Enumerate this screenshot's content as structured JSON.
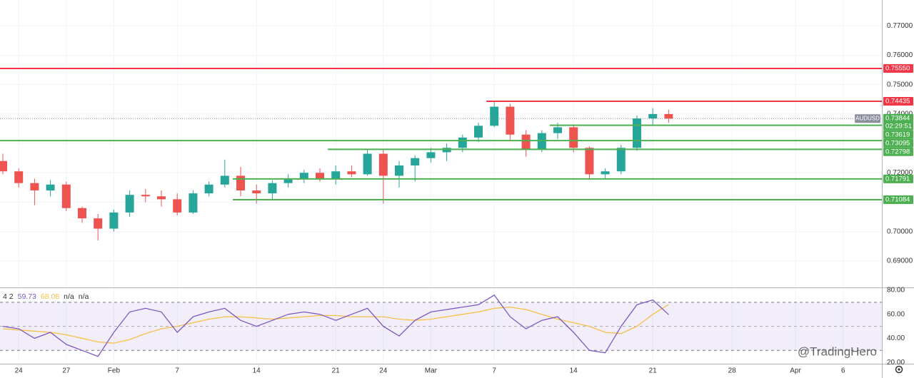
{
  "chart_data": [
    {
      "type": "candlestick",
      "categories": [
        null,
        "24",
        null,
        null,
        "27",
        null,
        null,
        "Feb",
        null,
        null,
        null,
        "7",
        null,
        null,
        null,
        null,
        "14",
        null,
        null,
        null,
        null,
        "21",
        null,
        null,
        "24",
        null,
        null,
        "Mar",
        null,
        null,
        null,
        "7",
        null,
        null,
        null,
        null,
        "14",
        null,
        null,
        null,
        null,
        "21",
        null,
        null,
        null,
        null,
        "28",
        null,
        null,
        null,
        "Apr",
        null,
        null,
        "6",
        null,
        null
      ],
      "open": [
        0.724,
        0.7205,
        0.7165,
        0.714,
        0.716,
        0.708,
        0.7045,
        0.701,
        0.7065,
        0.7125,
        0.712,
        0.711,
        0.7065,
        0.713,
        0.716,
        0.719,
        0.714,
        0.713,
        0.7165,
        0.718,
        0.72,
        0.718,
        0.7205,
        0.7195,
        0.7265,
        0.719,
        0.7225,
        0.725,
        0.727,
        0.7285,
        0.732,
        0.736,
        0.7425,
        0.733,
        0.728,
        0.7335,
        0.7355,
        0.7285,
        0.7195,
        0.7205,
        0.7285,
        0.7385,
        0.74,
        null,
        null,
        null,
        null,
        null,
        null,
        null,
        null,
        null,
        null,
        null,
        null,
        null
      ],
      "high": [
        0.7265,
        0.7215,
        0.718,
        0.7175,
        0.717,
        0.7085,
        0.706,
        0.7075,
        0.714,
        0.7145,
        0.714,
        0.713,
        0.714,
        0.717,
        0.7245,
        0.722,
        0.716,
        0.7175,
        0.7195,
        0.721,
        0.7215,
        0.7225,
        0.7225,
        0.728,
        0.728,
        0.724,
        0.726,
        0.7285,
        0.73,
        0.733,
        0.737,
        0.7441,
        0.7435,
        0.7345,
        0.7345,
        0.737,
        0.7365,
        0.729,
        0.7215,
        0.7295,
        0.7395,
        0.742,
        0.7415,
        null,
        null,
        null,
        null,
        null,
        null,
        null,
        null,
        null,
        null,
        null,
        null,
        null
      ],
      "low": [
        0.7195,
        0.715,
        0.709,
        0.712,
        0.707,
        0.703,
        0.697,
        0.7,
        0.705,
        0.71,
        0.7085,
        0.7055,
        0.706,
        0.712,
        0.715,
        0.712,
        0.7095,
        0.711,
        0.715,
        0.7165,
        0.717,
        0.716,
        0.7185,
        0.719,
        0.7095,
        0.715,
        0.717,
        0.7235,
        0.724,
        0.727,
        0.7305,
        0.7355,
        0.731,
        0.7255,
        0.727,
        0.7315,
        0.727,
        0.718,
        0.7178,
        0.7195,
        0.7275,
        0.736,
        0.737,
        null,
        null,
        null,
        null,
        null,
        null,
        null,
        null,
        null,
        null,
        null,
        null,
        null
      ],
      "close": [
        0.7205,
        0.7165,
        0.714,
        0.716,
        0.708,
        0.7045,
        0.701,
        0.7065,
        0.7125,
        0.712,
        0.711,
        0.7065,
        0.713,
        0.716,
        0.719,
        0.714,
        0.713,
        0.7165,
        0.718,
        0.72,
        0.718,
        0.7205,
        0.7195,
        0.7265,
        0.719,
        0.7225,
        0.725,
        0.727,
        0.7285,
        0.732,
        0.736,
        0.7425,
        0.733,
        0.728,
        0.7335,
        0.7355,
        0.7285,
        0.7195,
        0.7205,
        0.7285,
        0.7385,
        0.74,
        0.73844,
        null,
        null,
        null,
        null,
        null,
        null,
        null,
        null,
        null,
        null,
        null,
        null,
        null
      ],
      "up_color": "#26a69a",
      "down_color": "#ef5350",
      "ylim": [
        0.681,
        0.7788
      ],
      "yticks": [
        {
          "value": 0.69,
          "label": "0.69000"
        },
        {
          "value": 0.7,
          "label": "0.70000"
        },
        {
          "value": 0.71,
          "label": "0.71000"
        },
        {
          "value": 0.72,
          "label": "0.72000"
        },
        {
          "value": 0.73,
          "label": "0.73000"
        },
        {
          "value": 0.74,
          "label": "0.74000"
        },
        {
          "value": 0.75,
          "label": "0.75000"
        },
        {
          "value": 0.76,
          "label": "0.76000"
        },
        {
          "value": 0.77,
          "label": "0.77000"
        }
      ],
      "grid": true,
      "levels": [
        {
          "value": 0.7555,
          "label": "0.75550",
          "color": "#f23645",
          "start": 0
        },
        {
          "value": 0.74435,
          "label": "0.74435",
          "color": "#f23645",
          "start": 31
        },
        {
          "value": 0.73619,
          "label": "0.73619",
          "color": "#4caf50",
          "start": 35
        },
        {
          "value": 0.73095,
          "label": "0.73095",
          "color": "#4caf50",
          "start": 0
        },
        {
          "value": 0.72798,
          "label": "0.72798",
          "color": "#4caf50",
          "start": 21
        },
        {
          "value": 0.71791,
          "label": "0.71791",
          "color": "#4caf50",
          "start": 15
        },
        {
          "value": 0.71084,
          "label": "0.71084",
          "color": "#4caf50",
          "start": 15
        }
      ],
      "last": {
        "symbol": "AUDUSD",
        "price": 0.73844,
        "countdown": "02:29:51",
        "color": "#4caf50"
      }
    },
    {
      "type": "rsi",
      "header": [
        "4 2",
        "n/a",
        "n/a"
      ],
      "series": [
        {
          "color": "#7e57c2",
          "values": [
            50,
            48,
            40,
            45,
            35,
            30,
            25,
            45,
            62,
            65,
            62,
            45,
            58,
            62,
            65,
            55,
            50,
            55,
            60,
            62,
            60,
            55,
            60,
            65,
            50,
            42,
            55,
            62,
            64,
            66,
            68,
            76,
            58,
            48,
            55,
            58,
            45,
            30,
            28,
            50,
            68,
            72,
            59.73,
            null,
            null,
            null,
            null,
            null,
            null,
            null,
            null,
            null,
            null,
            null,
            null,
            null
          ]
        },
        {
          "color": "#f5c04a",
          "values": [
            48,
            47,
            46,
            45,
            43,
            40,
            37,
            36,
            39,
            44,
            48,
            50,
            53,
            56,
            58,
            58,
            57,
            56,
            57,
            58,
            59,
            59,
            58,
            58,
            58,
            56,
            55,
            56,
            58,
            60,
            62,
            65,
            66,
            64,
            60,
            56,
            53,
            50,
            45,
            44,
            50,
            60,
            68.08,
            null,
            null,
            null,
            null,
            null,
            null,
            null,
            null,
            null,
            null,
            null,
            null,
            null
          ]
        }
      ],
      "ylim": [
        18.9,
        82.4
      ],
      "yticks": [
        {
          "value": 20,
          "label": "20.00"
        },
        {
          "value": 40,
          "label": "40.00"
        },
        {
          "value": 60,
          "label": "60.00"
        },
        {
          "value": 80,
          "label": "80.00"
        }
      ],
      "band": [
        30,
        70
      ],
      "midline": 50,
      "band_color": "#7e57c2",
      "watermark": "@TradingHero"
    }
  ]
}
